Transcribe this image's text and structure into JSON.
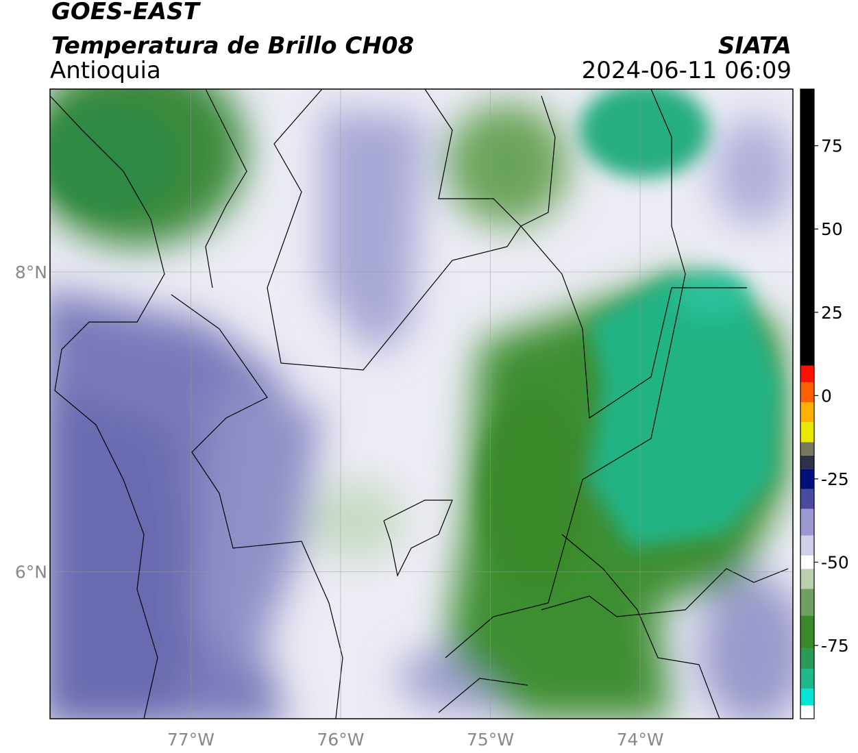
{
  "title": "GOES-EAST",
  "subtitle": "Temperatura de Brillo CH08",
  "region": "Antioquia",
  "source": "SIATA",
  "timestamp": "2024-06-11 06:09",
  "map": {
    "xlim": [
      -77.94,
      -72.98
    ],
    "ylim": [
      5.02,
      9.22
    ],
    "xticks": [
      {
        "value": -77,
        "label": "77°W"
      },
      {
        "value": -76,
        "label": "76°W"
      },
      {
        "value": -75,
        "label": "75°W"
      },
      {
        "value": -74,
        "label": "74°W"
      }
    ],
    "yticks": [
      {
        "value": 6,
        "label": "6°N"
      },
      {
        "value": 8,
        "label": "8°N"
      }
    ],
    "grid": true
  },
  "colorbar": {
    "lim": [
      -97,
      92
    ],
    "ticks": [
      -75,
      -50,
      -25,
      0,
      25,
      50,
      75
    ],
    "segments": [
      {
        "from": -97,
        "to": -93,
        "color": "#ffffff"
      },
      {
        "from": -93,
        "to": -88,
        "color": "#00e5d5"
      },
      {
        "from": -88,
        "to": -82,
        "color": "#1fb88a"
      },
      {
        "from": -82,
        "to": -76,
        "color": "#2a9a5a"
      },
      {
        "from": -76,
        "to": -66,
        "color": "#3a8a2a"
      },
      {
        "from": -66,
        "to": -58,
        "color": "#6fa060"
      },
      {
        "from": -58,
        "to": -52,
        "color": "#b8d0b0"
      },
      {
        "from": -52,
        "to": -48,
        "color": "#ffffff"
      },
      {
        "from": -48,
        "to": -42,
        "color": "#d0d0e8"
      },
      {
        "from": -42,
        "to": -34,
        "color": "#9a9ad0"
      },
      {
        "from": -34,
        "to": -28,
        "color": "#4a4aa0"
      },
      {
        "from": -28,
        "to": -22,
        "color": "#00107a"
      },
      {
        "from": -22,
        "to": -18,
        "color": "#303048"
      },
      {
        "from": -18,
        "to": -14,
        "color": "#787860"
      },
      {
        "from": -14,
        "to": -8,
        "color": "#e8e800"
      },
      {
        "from": -8,
        "to": -2,
        "color": "#ffb000"
      },
      {
        "from": -2,
        "to": 4,
        "color": "#ff6000"
      },
      {
        "from": 4,
        "to": 9,
        "color": "#ff1000"
      },
      {
        "from": 9,
        "to": 92,
        "color": "#000000"
      }
    ]
  }
}
